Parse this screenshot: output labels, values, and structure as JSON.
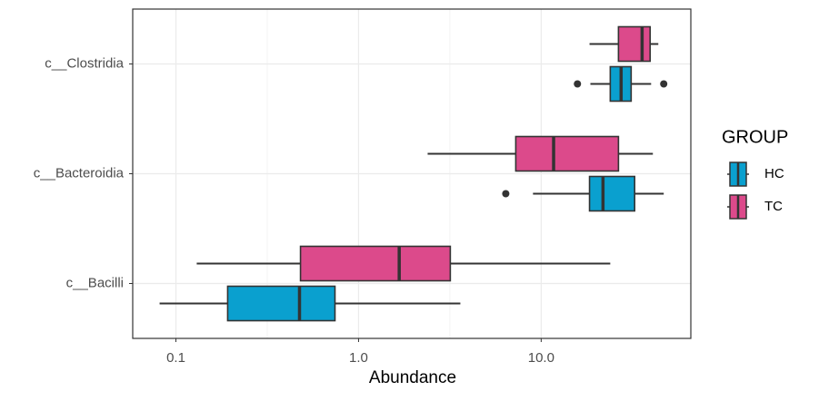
{
  "chart_data": {
    "type": "boxplot",
    "orientation": "horizontal",
    "x_label": "Abundance",
    "categories": [
      "c__Clostridia",
      "c__Bacteroidia",
      "c__Bacilli"
    ],
    "xscale": "log",
    "xlim": [
      0.058,
      66
    ],
    "xticks": [
      0.1,
      {
        "value": 1,
        "label": "1.0"
      },
      {
        "value": 10,
        "label": "10.0"
      }
    ],
    "grid": true,
    "legend_title": "GROUP",
    "legend_position": "right",
    "series": [
      {
        "name": "HC",
        "color": "#0aa0cf",
        "boxes": [
          {
            "min": 18.6,
            "q1": 23.9,
            "median": 27.4,
            "q3": 31.1,
            "max": 40.0,
            "outliers": [
              15.8,
              46.9
            ]
          },
          {
            "min": 9.02,
            "q1": 18.4,
            "median": 21.8,
            "q3": 32.5,
            "max": 46.9,
            "outliers": [
              6.4
            ]
          },
          {
            "min": 0.0814,
            "q1": 0.192,
            "median": 0.475,
            "q3": 0.743,
            "max": 3.61,
            "outliers": []
          }
        ]
      },
      {
        "name": "TC",
        "color": "#dc4a8b",
        "boxes": [
          {
            "min": 18.4,
            "q1": 26.5,
            "median": 35.7,
            "q3": 39.5,
            "max": 43.8,
            "outliers": []
          },
          {
            "min": 2.39,
            "q1": 7.26,
            "median": 11.7,
            "q3": 26.5,
            "max": 40.9,
            "outliers": []
          },
          {
            "min": 0.13,
            "q1": 0.481,
            "median": 1.67,
            "q3": 3.18,
            "max": 23.9,
            "outliers": []
          }
        ]
      }
    ]
  }
}
